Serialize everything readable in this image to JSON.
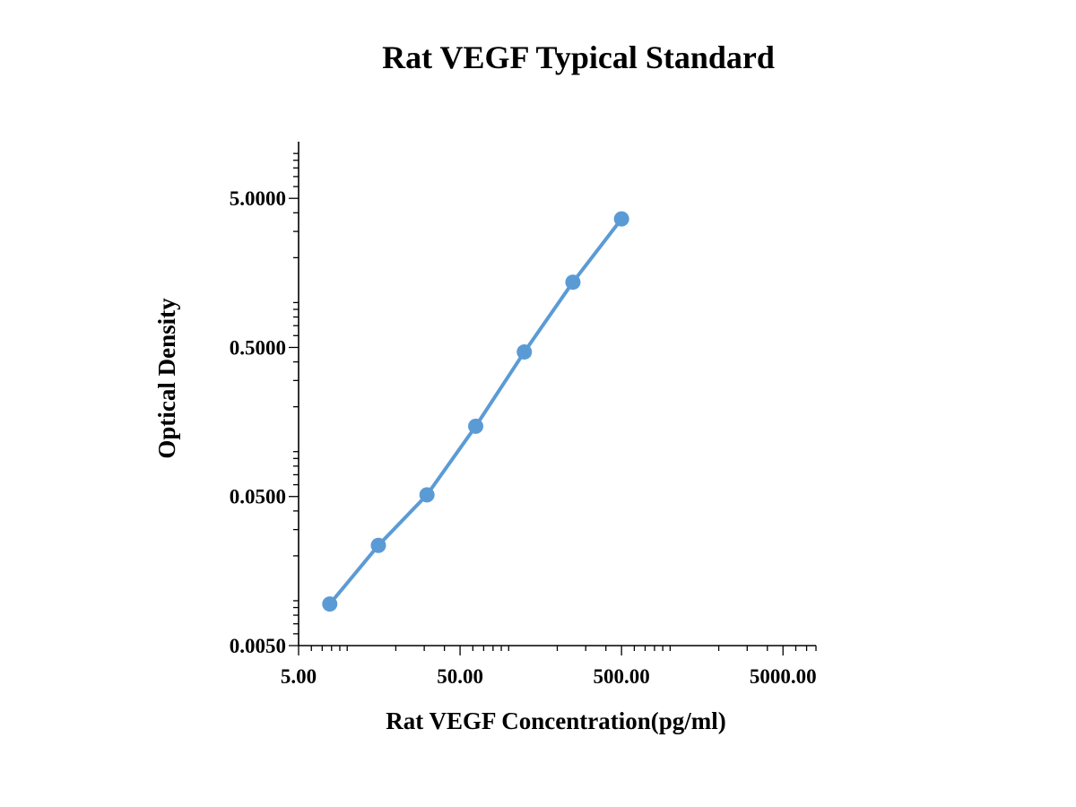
{
  "chart_data": {
    "type": "line",
    "title": "Rat  VEGF Typical Standard",
    "xlabel": "Rat  VEGF Concentration(pg/ml)",
    "ylabel": "Optical Density",
    "x_scale": "log",
    "y_scale": "log",
    "xlim": [
      5,
      8000
    ],
    "ylim": [
      0.005,
      12
    ],
    "x_ticks": [
      5,
      50,
      500,
      5000
    ],
    "x_tick_labels": [
      "5.00",
      "50.00",
      "500.00",
      "5000.00"
    ],
    "y_ticks": [
      0.005,
      0.05,
      0.5,
      5
    ],
    "y_tick_labels": [
      "0.0050",
      "0.0500",
      "0.5000",
      "5.0000"
    ],
    "grid": false,
    "legend": "none",
    "color": "#5b9bd5",
    "series": [
      {
        "x": [
          7.8,
          15.6,
          31.2,
          62.5,
          125,
          250,
          500
        ],
        "y": [
          0.0095,
          0.0235,
          0.0513,
          0.148,
          0.466,
          1.37,
          3.64
        ]
      }
    ]
  }
}
